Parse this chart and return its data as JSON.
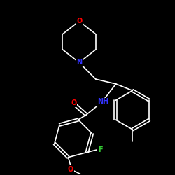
{
  "background_color": "#000000",
  "bond_color": "#ffffff",
  "atom_colors": {
    "O": "#ff0000",
    "N": "#3333ff",
    "F": "#33cc33",
    "C": "#ffffff"
  },
  "figsize": [
    2.5,
    2.5
  ],
  "dpi": 100,
  "lw": 1.2
}
